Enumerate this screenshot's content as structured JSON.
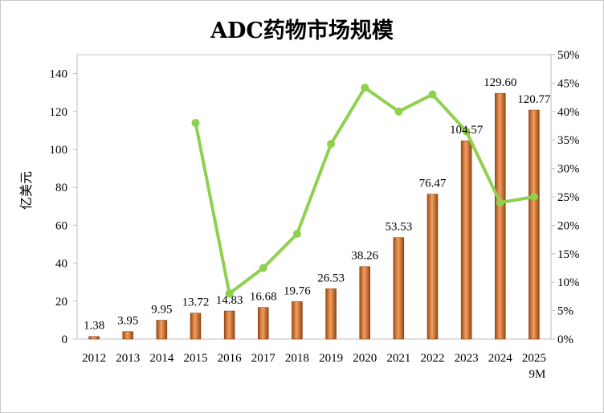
{
  "chart_data": {
    "type": "bar",
    "title": "ADC药物市场规模",
    "ylabel": "亿美元",
    "y2label": "",
    "categories": [
      "2012",
      "2013",
      "2014",
      "2015",
      "2016",
      "2017",
      "2018",
      "2019",
      "2020",
      "2021",
      "2022",
      "2023",
      "2024",
      "2025\n9M"
    ],
    "series": [
      {
        "kind": "bar",
        "axis": "left",
        "color": "#c8621f",
        "values": [
          1.38,
          3.95,
          9.95,
          13.72,
          14.83,
          16.68,
          19.76,
          26.53,
          38.26,
          53.53,
          76.47,
          104.57,
          129.6,
          120.77
        ],
        "labels": [
          "1.38",
          "3.95",
          "9.95",
          "13.72",
          "14.83",
          "16.68",
          "19.76",
          "26.53",
          "38.26",
          "53.53",
          "76.47",
          "104.57",
          "129.60",
          "120.77"
        ]
      },
      {
        "kind": "line",
        "axis": "right",
        "color": "#8fd14f",
        "values": [
          null,
          null,
          null,
          0.38,
          0.08,
          0.125,
          0.185,
          0.343,
          0.442,
          0.4,
          0.43,
          0.365,
          0.24,
          0.25
        ]
      }
    ],
    "ylim": [
      0,
      150
    ],
    "yticks": [
      0,
      20,
      40,
      60,
      80,
      100,
      120,
      140
    ],
    "y2lim": [
      0,
      0.5
    ],
    "y2ticks": [
      0,
      0.05,
      0.1,
      0.15,
      0.2,
      0.25,
      0.3,
      0.35,
      0.4,
      0.45,
      0.5
    ],
    "y2ticklabels": [
      "0%",
      "5%",
      "10%",
      "15%",
      "20%",
      "25%",
      "30%",
      "35%",
      "40%",
      "45%",
      "50%"
    ],
    "grid": false,
    "legend": "none"
  }
}
